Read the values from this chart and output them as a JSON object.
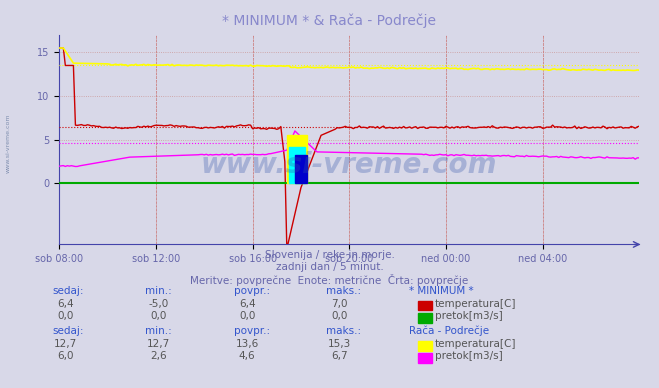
{
  "title": "* MINIMUM * & Rača - Podrečje",
  "title_color": "#8888cc",
  "bg_color": "#d8d8e8",
  "plot_bg_color": "#d8d8e8",
  "grid_color": "#cc9999",
  "xlabel_color": "#6666aa",
  "ylabel_color": "#6666aa",
  "x_labels": [
    "sob 08:00",
    "sob 12:00",
    "sob 16:00",
    "sob 20:00",
    "ned 00:00",
    "ned 04:00"
  ],
  "x_ticks": [
    0,
    48,
    96,
    144,
    192,
    240
  ],
  "y_ticks": [
    0,
    5,
    10,
    15
  ],
  "ylim": [
    -7,
    17
  ],
  "xlim": [
    0,
    288
  ],
  "watermark": "www.si-vreme.com",
  "watermark_color": "#3355aa",
  "watermark_alpha": 0.3,
  "subtitle1": "Slovenija / reke in morje.",
  "subtitle2": "zadnji dan / 5 minut.",
  "subtitle3": "Meritve: povprečne  Enote: metrične  Črta: povprečje",
  "subtitle_color": "#6666aa",
  "table_header_color": "#3355cc",
  "colors": {
    "minimum_temp": "#cc0000",
    "minimum_pretok": "#00aa00",
    "raca_temp": "#ffff00",
    "raca_pretok": "#ff00ff"
  }
}
